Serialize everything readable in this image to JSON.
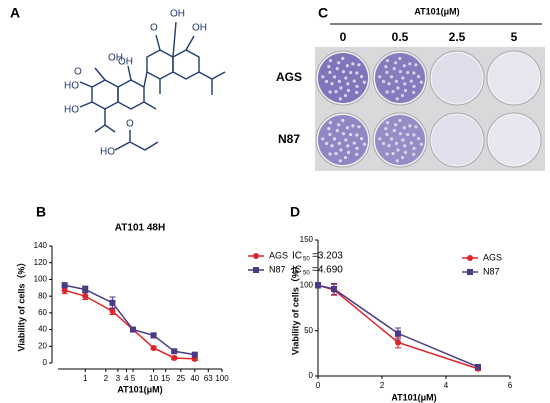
{
  "panels": {
    "a": "A",
    "b": "B",
    "c": "C",
    "d": "D"
  },
  "structure": {
    "atoms": [
      "O",
      "HO",
      "HO",
      "OH",
      "OH",
      "O",
      "OH",
      "OH",
      "HO",
      "O"
    ]
  },
  "plates": {
    "title": "AT101(μM)",
    "columns": [
      "0",
      "0.5",
      "2.5",
      "5"
    ],
    "rows": [
      "AGS",
      "N87"
    ]
  },
  "chart_data": [
    {
      "type": "line",
      "title": "AT101 48H",
      "xlabel": "AT101(μM)",
      "ylabel": "Viability of cells（%）",
      "x": [
        0.5,
        1,
        2.5,
        5,
        10,
        20,
        40
      ],
      "xscale": "log",
      "xlim": [
        0.4,
        100
      ],
      "xticks": [
        1,
        2,
        3,
        4,
        5,
        10,
        15,
        25,
        40,
        63,
        100
      ],
      "ylim": [
        0,
        140
      ],
      "yticks": [
        0,
        20,
        40,
        60,
        80,
        100,
        120,
        140
      ],
      "series": [
        {
          "name": "AGS",
          "color": "#e0242a",
          "marker": "circle",
          "values": [
            87,
            80,
            62,
            40,
            18,
            6,
            5
          ],
          "errors": [
            4,
            4,
            4,
            2,
            2,
            2,
            2
          ],
          "ic_label": "IC",
          "ic_sub": "50",
          "ic_value": "=3.203"
        },
        {
          "name": "N87",
          "color": "#4b3a86",
          "marker": "square",
          "values": [
            93,
            88,
            72,
            40,
            33,
            14,
            10
          ],
          "errors": [
            3,
            4,
            7,
            2,
            3,
            2,
            2
          ],
          "ic_label": "IC",
          "ic_sub": "50",
          "ic_value": "=4.690"
        }
      ]
    },
    {
      "type": "line",
      "xlabel": "AT101(μM)",
      "ylabel": "Viability of cells（%）",
      "x": [
        0,
        0.5,
        2.5,
        5
      ],
      "xlim": [
        0,
        6
      ],
      "xticks": [
        0,
        2,
        4,
        6
      ],
      "ylim": [
        0,
        150
      ],
      "yticks": [
        0,
        50,
        100,
        150
      ],
      "series": [
        {
          "name": "AGS",
          "color": "#e0242a",
          "marker": "circle",
          "values": [
            100,
            95,
            37,
            8
          ],
          "errors": [
            3,
            6,
            6,
            2
          ]
        },
        {
          "name": "N87",
          "color": "#4b3a86",
          "marker": "square",
          "values": [
            100,
            96,
            47,
            10
          ],
          "errors": [
            3,
            6,
            6,
            2
          ]
        }
      ]
    }
  ]
}
